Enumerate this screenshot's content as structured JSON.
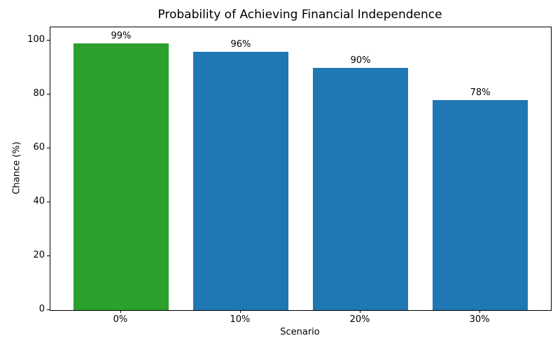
{
  "chart_data": {
    "type": "bar",
    "title": "Probability of Achieving Financial Independence",
    "xlabel": "Scenario",
    "ylabel": "Chance (%)",
    "categories": [
      "0%",
      "10%",
      "20%",
      "30%"
    ],
    "values": [
      99,
      96,
      90,
      78
    ],
    "bar_labels": [
      "99%",
      "96%",
      "90%",
      "78%"
    ],
    "bar_colors": [
      "#2ca02c",
      "#1f77b4",
      "#1f77b4",
      "#1f77b4"
    ],
    "yticks": [
      0,
      20,
      40,
      60,
      80,
      100
    ],
    "ylim": [
      0,
      105
    ],
    "grid": false,
    "legend_position": "none",
    "axis_color": "#000000",
    "background_color": "#ffffff"
  }
}
